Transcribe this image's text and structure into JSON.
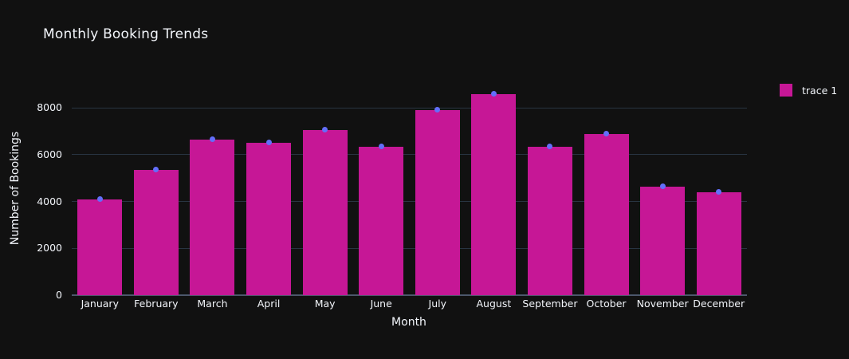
{
  "chart_data": {
    "type": "bar",
    "title": "Monthly Booking Trends",
    "xlabel": "Month",
    "ylabel": "Number of Bookings",
    "categories": [
      "January",
      "February",
      "March",
      "April",
      "May",
      "June",
      "July",
      "August",
      "September",
      "October",
      "November",
      "December"
    ],
    "series": [
      {
        "name": "trace 1",
        "values": [
          4100,
          5350,
          6650,
          6500,
          7050,
          6350,
          7900,
          8600,
          6350,
          6900,
          4650,
          4400
        ]
      }
    ],
    "markers": {
      "shown": true,
      "color": "#636efa"
    },
    "ylim": [
      0,
      9100
    ],
    "yticks": [
      0,
      2000,
      4000,
      6000,
      8000
    ],
    "grid": true,
    "legend_position": "right",
    "colors": {
      "background": "#111111",
      "bar": "#c61796",
      "marker": "#636efa",
      "gridline": "#283442",
      "axis_line": "#4c576b",
      "text": "#f2f5fa"
    }
  }
}
